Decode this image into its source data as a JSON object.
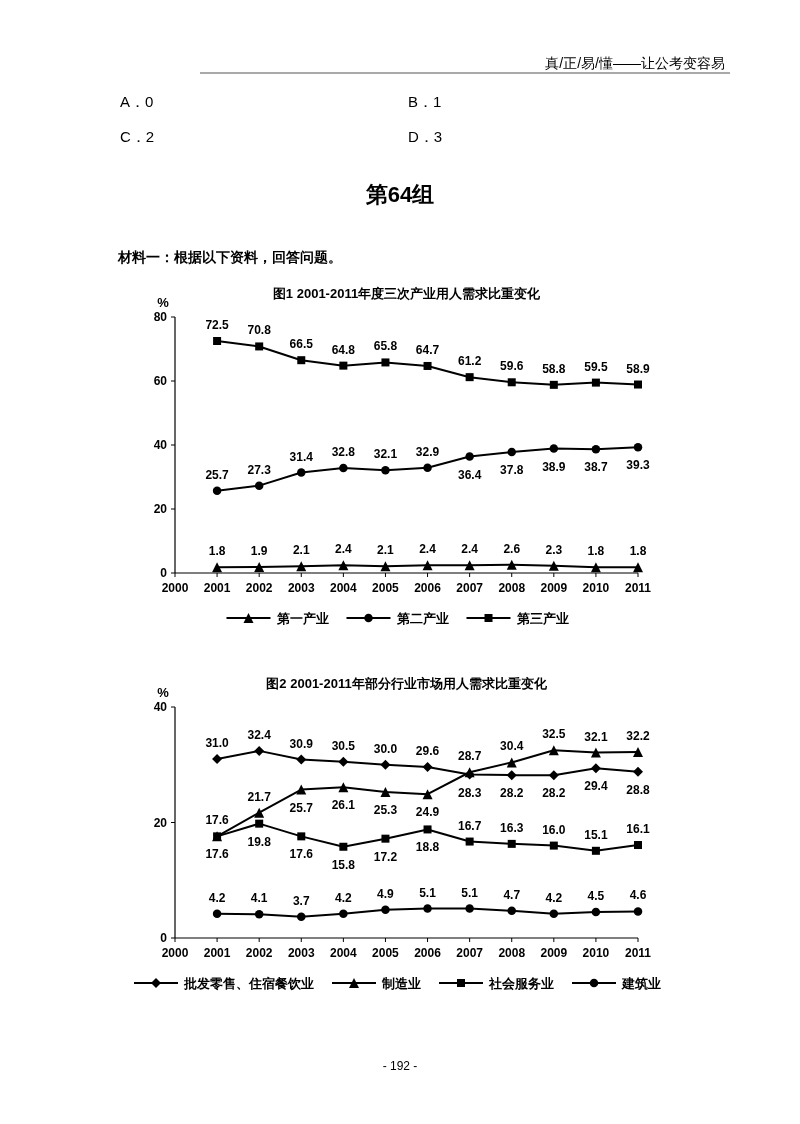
{
  "chart_data": [
    {
      "type": "line",
      "title": "图1 2001-2011年度三次产业用人需求比重变化",
      "ylabel": "%",
      "x": [
        2001,
        2002,
        2003,
        2004,
        2005,
        2006,
        2007,
        2008,
        2009,
        2010,
        2011
      ],
      "xlim": [
        2000,
        2011
      ],
      "xticks": [
        2000,
        2001,
        2002,
        2003,
        2004,
        2005,
        2006,
        2007,
        2008,
        2009,
        2010,
        2011
      ],
      "ylim": [
        0,
        80
      ],
      "yticks": [
        0,
        20,
        40,
        60,
        80
      ],
      "data_labels": true,
      "legend": "bottom",
      "grid": false,
      "line_style": "solid",
      "annotations": [
        "真/正/易/懂——让公考变容易",
        "A．0",
        "B．1",
        "C．2",
        "D．3",
        "第64组",
        "材料一：根据以下资料，回答问题。",
        "- 192 -"
      ],
      "series": [
        {
          "name": "第一产业",
          "color": "#000000",
          "marker": "triangle",
          "values": [
            1.8,
            1.9,
            2.1,
            2.4,
            2.1,
            2.4,
            2.4,
            2.6,
            2.3,
            1.8,
            1.8
          ]
        },
        {
          "name": "第二产业",
          "color": "#000000",
          "marker": "circle",
          "values": [
            25.7,
            27.3,
            31.4,
            32.8,
            32.1,
            32.9,
            36.4,
            37.8,
            38.9,
            38.7,
            39.3
          ]
        },
        {
          "name": "第三产业",
          "color": "#000000",
          "marker": "square",
          "values": [
            72.5,
            70.8,
            66.5,
            64.8,
            65.8,
            64.7,
            61.2,
            59.6,
            58.8,
            59.5,
            58.9
          ]
        }
      ]
    },
    {
      "type": "line",
      "title": "图2 2001-2011年部分行业市场用人需求比重变化",
      "ylabel": "%",
      "x": [
        2001,
        2002,
        2003,
        2004,
        2005,
        2006,
        2007,
        2008,
        2009,
        2010,
        2011
      ],
      "xlim": [
        2000,
        2011
      ],
      "xticks": [
        2000,
        2001,
        2002,
        2003,
        2004,
        2005,
        2006,
        2007,
        2008,
        2009,
        2010,
        2011
      ],
      "ylim": [
        0,
        40
      ],
      "yticks": [
        0,
        20,
        40
      ],
      "data_labels": true,
      "legend": "bottom",
      "grid": false,
      "line_style": "solid",
      "series": [
        {
          "name": "批发零售、住宿餐饮业",
          "color": "#000000",
          "marker": "diamond",
          "values": [
            31.0,
            32.4,
            30.9,
            30.5,
            30.0,
            29.6,
            28.3,
            28.2,
            28.2,
            29.4,
            28.8
          ],
          "value_labels": [
            "31.0",
            "32.4",
            "30.9",
            "30.5",
            "30.0",
            "29.6",
            "28.3",
            "28.2",
            "28.2",
            "29.4",
            "28.8"
          ]
        },
        {
          "name": "制造业",
          "color": "#000000",
          "marker": "triangle",
          "values": [
            17.6,
            21.7,
            25.7,
            26.1,
            25.3,
            24.9,
            28.7,
            30.4,
            32.5,
            32.1,
            32.2
          ],
          "value_labels": [
            "17.6",
            "21.7",
            "25.7",
            "26.1",
            "25.3",
            "24.9",
            "28.7",
            "30.4",
            "32.5",
            "32.1",
            "32.2"
          ]
        },
        {
          "name": "社会服务业",
          "color": "#000000",
          "marker": "square",
          "values": [
            17.6,
            19.8,
            17.6,
            15.8,
            17.2,
            18.8,
            16.7,
            16.3,
            16.0,
            15.1,
            16.1
          ],
          "value_labels": [
            "17.6",
            "19.8",
            "17.6",
            "15.8",
            "17.2",
            "18.8",
            "16.7",
            "16.3",
            "16.0",
            "15.1",
            "16.1"
          ]
        },
        {
          "name": "建筑业",
          "color": "#000000",
          "marker": "circle",
          "values": [
            4.2,
            4.1,
            3.7,
            4.2,
            4.9,
            5.1,
            5.1,
            4.7,
            4.2,
            4.5,
            4.6
          ],
          "value_labels": [
            "4.2",
            "4.1",
            "3.7",
            "4.2",
            "4.9",
            "5.1",
            "5.1",
            "4.7",
            "4.2",
            "4.5",
            "4.6"
          ]
        }
      ]
    }
  ]
}
